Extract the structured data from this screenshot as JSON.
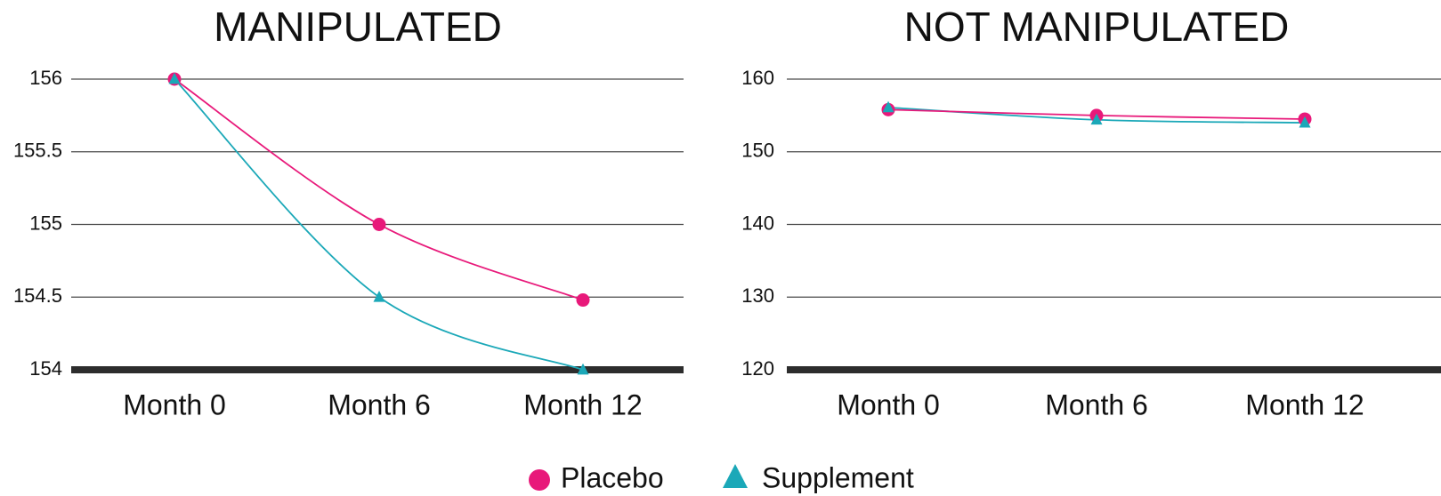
{
  "chart_data": [
    {
      "type": "line",
      "title": "MANIPULATED",
      "xlabel": "",
      "ylabel": "",
      "categories": [
        "Month 0",
        "Month 6",
        "Month 12"
      ],
      "ylim": [
        154,
        156
      ],
      "yticks": [
        "154",
        "154.5",
        "155",
        "155.5",
        "156"
      ],
      "grid": true,
      "series": [
        {
          "name": "Placebo",
          "values": [
            156,
            155,
            154.48
          ]
        },
        {
          "name": "Supplement",
          "values": [
            156,
            154.5,
            154
          ]
        }
      ]
    },
    {
      "type": "line",
      "title": "NOT MANIPULATED",
      "xlabel": "",
      "ylabel": "",
      "categories": [
        "Month 0",
        "Month 6",
        "Month 12"
      ],
      "ylim": [
        120,
        160
      ],
      "yticks": [
        "120",
        "130",
        "140",
        "150",
        "160"
      ],
      "grid": true,
      "series": [
        {
          "name": "Placebo",
          "values": [
            155.8,
            155,
            154.5
          ]
        },
        {
          "name": "Supplement",
          "values": [
            156.1,
            154.4,
            154
          ]
        }
      ]
    }
  ],
  "legend": {
    "placement": "bottom-center",
    "items": [
      {
        "label": "Placebo",
        "marker": "circle-icon",
        "color": "#e8197a"
      },
      {
        "label": "Supplement",
        "marker": "triangle-icon",
        "color": "#1ba8b8"
      }
    ]
  },
  "colors": {
    "placebo": "#e8197a",
    "supplement": "#1ba8b8",
    "gridline": "#4a4a4a",
    "baseline": "#2d2d2d",
    "text": "#111111"
  }
}
